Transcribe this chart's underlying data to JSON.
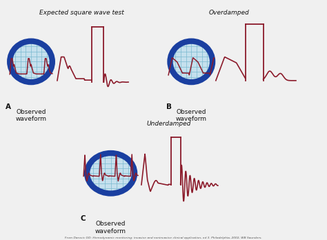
{
  "title_a": "Expected square wave test",
  "title_b": "Overdamped",
  "title_c": "Underdamped",
  "label_a": "A",
  "label_b": "B",
  "label_c": "C",
  "label_obs": "Observed\nwaveform",
  "citation": "From Darovic GO: Hemodynamic monitoring: invasive and noninvasive clinical application, ed 3. Philadelphia, 2002, WB Saunders.",
  "bg_color": "#f0f0f0",
  "circle_face": "#c5e0ed",
  "circle_edge": "#1a3fa0",
  "grid_color": "#7ab8d0",
  "wave_color": "#8b1a2a",
  "text_color": "#111111",
  "circle_lw": 6,
  "fig_w": 4.74,
  "fig_h": 3.48,
  "dpi": 100
}
